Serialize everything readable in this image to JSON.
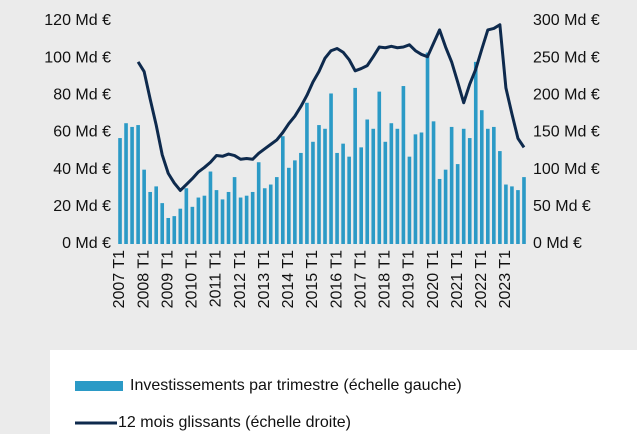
{
  "chart_data": {
    "type": "bar-line",
    "categories": [
      "2007 T1",
      null,
      null,
      null,
      "2008 T1",
      null,
      null,
      null,
      "2009 T1",
      null,
      null,
      null,
      "2010 T1",
      null,
      null,
      null,
      "2011 T1",
      null,
      null,
      null,
      "2012 T1",
      null,
      null,
      null,
      "2013 T1",
      null,
      null,
      null,
      "2014 T1",
      null,
      null,
      null,
      "2015 T1",
      null,
      null,
      null,
      "2016 T1",
      null,
      null,
      null,
      "2017 T1",
      null,
      null,
      null,
      "2018 T1",
      null,
      null,
      null,
      "2019 T1",
      null,
      null,
      null,
      "2020 T1",
      null,
      null,
      null,
      "2021 T1",
      null,
      null,
      null,
      "2022 T1",
      null,
      null,
      null,
      "2023 T1",
      null,
      null,
      null
    ],
    "series": [
      {
        "name": "Investissements par trimestre (échelle gauche)",
        "type": "bar",
        "color": "#2b9ac6",
        "values": [
          57,
          65,
          63,
          64,
          40,
          28,
          31,
          22,
          14,
          15,
          19,
          30,
          20,
          25,
          26,
          39,
          29,
          24,
          28,
          36,
          25,
          26,
          28,
          44,
          30,
          32,
          36,
          58,
          41,
          45,
          49,
          76,
          55,
          64,
          62,
          81,
          49,
          54,
          47,
          84,
          52,
          67,
          62,
          82,
          55,
          65,
          62,
          85,
          47,
          59,
          60,
          103,
          66,
          35,
          40,
          63,
          43,
          62,
          57,
          98,
          72,
          62,
          63,
          50,
          32,
          31,
          29,
          36
        ]
      },
      {
        "name": "12 mois glissants (échelle droite)",
        "type": "line",
        "axis": "y2",
        "color": "#0e2a4d",
        "values": [
          null,
          null,
          null,
          245,
          232,
          195,
          160,
          120,
          95,
          82,
          72,
          80,
          88,
          97,
          103,
          110,
          119,
          118,
          121,
          119,
          114,
          115,
          114,
          122,
          128,
          134,
          140,
          150,
          162,
          172,
          185,
          200,
          218,
          232,
          250,
          260,
          263,
          258,
          248,
          233,
          236,
          240,
          252,
          265,
          264,
          266,
          264,
          265,
          268,
          260,
          255,
          252,
          270,
          288,
          265,
          245,
          218,
          190,
          215,
          235,
          262,
          288,
          290,
          295,
          210,
          175,
          142,
          130
        ]
      }
    ],
    "ylim": [
      0,
      120
    ],
    "yticks": [
      {
        "value": 0,
        "label": "0 Md €"
      },
      {
        "value": 20,
        "label": "20 Md €"
      },
      {
        "value": 40,
        "label": "40 Md €"
      },
      {
        "value": 60,
        "label": "60 Md €"
      },
      {
        "value": 80,
        "label": "80 Md €"
      },
      {
        "value": 100,
        "label": "100 Md €"
      },
      {
        "value": 120,
        "label": "120 Md €"
      }
    ],
    "y2lim": [
      0,
      300
    ],
    "y2ticks": [
      {
        "value": 0,
        "label": "0 Md €"
      },
      {
        "value": 50,
        "label": "50 Md €"
      },
      {
        "value": 100,
        "label": "100 Md €"
      },
      {
        "value": 150,
        "label": "150 Md €"
      },
      {
        "value": 200,
        "label": "200 Md €"
      },
      {
        "value": 250,
        "label": "250 Md €"
      },
      {
        "value": 300,
        "label": "300 Md €"
      }
    ],
    "legend": "bottom"
  }
}
